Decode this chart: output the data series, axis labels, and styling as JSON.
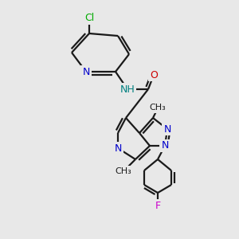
{
  "bg_color": "#e8e8e8",
  "bond_color": "#1a1a1a",
  "bond_lw": 1.6,
  "dbl_off": 3.5,
  "atom_colors": {
    "N": "#0000cc",
    "NH": "#008080",
    "O": "#cc0000",
    "F": "#cc00cc",
    "Cl": "#00aa00",
    "C": "#1a1a1a"
  },
  "fs": 9.0,
  "fs_me": 8.0
}
